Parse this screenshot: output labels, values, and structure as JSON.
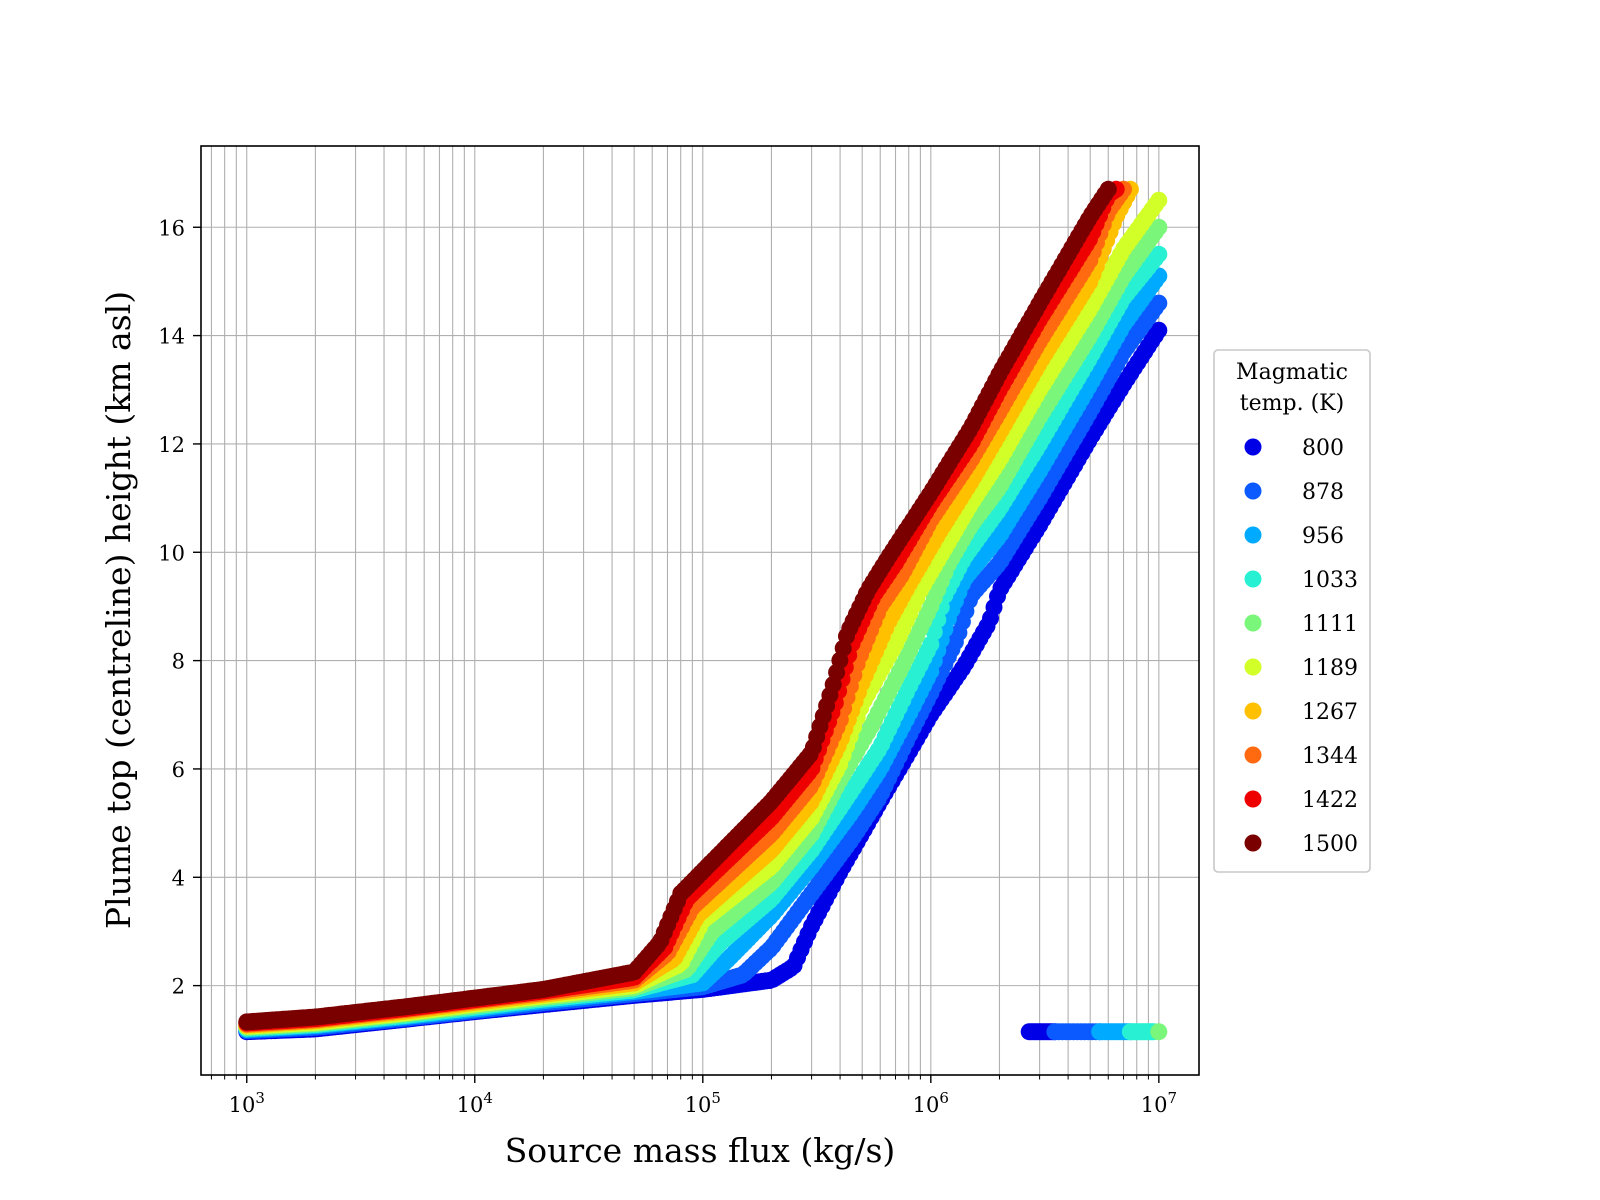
{
  "chart_data": {
    "type": "scatter",
    "xscale": "log",
    "xlim": [
      630,
      15000000
    ],
    "ylim": [
      0.35,
      17.5
    ],
    "xlabel": "Source mass flux (kg/s)",
    "ylabel": "Plume top (centreline) height (km asl)",
    "grid": true,
    "x_ticks": [
      {
        "value": 1000,
        "base": "10",
        "exp": "3"
      },
      {
        "value": 10000,
        "base": "10",
        "exp": "4"
      },
      {
        "value": 100000,
        "base": "10",
        "exp": "5"
      },
      {
        "value": 1000000,
        "base": "10",
        "exp": "6"
      },
      {
        "value": 10000000,
        "base": "10",
        "exp": "7"
      }
    ],
    "y_ticks": [
      {
        "value": 2,
        "label": "2"
      },
      {
        "value": 4,
        "label": "4"
      },
      {
        "value": 6,
        "label": "6"
      },
      {
        "value": 8,
        "label": "8"
      },
      {
        "value": 10,
        "label": "10"
      },
      {
        "value": 12,
        "label": "12"
      },
      {
        "value": 14,
        "label": "14"
      },
      {
        "value": 16,
        "label": "16"
      }
    ],
    "legend": {
      "title_lines": [
        "Magmatic",
        "temp. (K)"
      ],
      "placement": "outside-right"
    },
    "series": [
      {
        "name": "800",
        "color": "#0000e6",
        "points": [
          [
            1000,
            1.15
          ],
          [
            2000,
            1.2
          ],
          [
            5000,
            1.38
          ],
          [
            10000,
            1.52
          ],
          [
            20000,
            1.65
          ],
          [
            50000,
            1.82
          ],
          [
            100000,
            1.93
          ],
          [
            200000,
            2.1
          ],
          [
            250000,
            2.35
          ],
          [
            300000,
            3.1
          ],
          [
            400000,
            4.1
          ],
          [
            600000,
            5.4
          ],
          [
            800000,
            6.3
          ],
          [
            1000000,
            7.0
          ],
          [
            1400000,
            7.9
          ],
          [
            1800000,
            8.7
          ],
          [
            2000000,
            9.3
          ],
          [
            3000000,
            10.5
          ],
          [
            5000000,
            12.1
          ],
          [
            7000000,
            13.1
          ],
          [
            10000000,
            14.1
          ]
        ]
      },
      {
        "name": "878",
        "color": "#0a5aff",
        "points": [
          [
            1000,
            1.17
          ],
          [
            2000,
            1.23
          ],
          [
            5000,
            1.4
          ],
          [
            10000,
            1.54
          ],
          [
            20000,
            1.68
          ],
          [
            50000,
            1.85
          ],
          [
            100000,
            1.98
          ],
          [
            150000,
            2.2
          ],
          [
            200000,
            2.7
          ],
          [
            300000,
            3.7
          ],
          [
            450000,
            4.7
          ],
          [
            600000,
            5.5
          ],
          [
            800000,
            6.6
          ],
          [
            1000000,
            7.4
          ],
          [
            1300000,
            8.4
          ],
          [
            1500000,
            9.2
          ],
          [
            2000000,
            9.8
          ],
          [
            3000000,
            11.0
          ],
          [
            5000000,
            12.6
          ],
          [
            7000000,
            13.7
          ],
          [
            10000000,
            14.6
          ]
        ]
      },
      {
        "name": "956",
        "color": "#00aaff",
        "points": [
          [
            1000,
            1.19
          ],
          [
            2000,
            1.26
          ],
          [
            5000,
            1.43
          ],
          [
            10000,
            1.57
          ],
          [
            20000,
            1.72
          ],
          [
            50000,
            1.89
          ],
          [
            100000,
            2.05
          ],
          [
            130000,
            2.5
          ],
          [
            200000,
            3.3
          ],
          [
            300000,
            4.2
          ],
          [
            450000,
            5.2
          ],
          [
            600000,
            6.0
          ],
          [
            800000,
            7.0
          ],
          [
            1000000,
            7.8
          ],
          [
            1200000,
            8.8
          ],
          [
            1400000,
            9.5
          ],
          [
            2000000,
            10.3
          ],
          [
            3000000,
            11.5
          ],
          [
            5000000,
            13.1
          ],
          [
            7000000,
            14.2
          ],
          [
            10000000,
            15.1
          ]
        ]
      },
      {
        "name": "1033",
        "color": "#28f0d2",
        "points": [
          [
            1000,
            1.21
          ],
          [
            2000,
            1.28
          ],
          [
            5000,
            1.45
          ],
          [
            10000,
            1.6
          ],
          [
            20000,
            1.75
          ],
          [
            50000,
            1.92
          ],
          [
            90000,
            2.2
          ],
          [
            120000,
            2.8
          ],
          [
            200000,
            3.6
          ],
          [
            300000,
            4.5
          ],
          [
            450000,
            5.6
          ],
          [
            600000,
            6.4
          ],
          [
            800000,
            7.5
          ],
          [
            1000000,
            8.3
          ],
          [
            1150000,
            9.2
          ],
          [
            1400000,
            9.9
          ],
          [
            2000000,
            10.8
          ],
          [
            3000000,
            12.0
          ],
          [
            5000000,
            13.6
          ],
          [
            7000000,
            14.7
          ],
          [
            10000000,
            15.5
          ]
        ]
      },
      {
        "name": "1111",
        "color": "#7af77a",
        "points": [
          [
            1000,
            1.23
          ],
          [
            2000,
            1.3
          ],
          [
            5000,
            1.48
          ],
          [
            10000,
            1.63
          ],
          [
            20000,
            1.78
          ],
          [
            50000,
            1.96
          ],
          [
            85000,
            2.3
          ],
          [
            110000,
            3.0
          ],
          [
            200000,
            3.9
          ],
          [
            300000,
            4.8
          ],
          [
            400000,
            5.8
          ],
          [
            550000,
            6.8
          ],
          [
            750000,
            7.9
          ],
          [
            1000000,
            9.0
          ],
          [
            1200000,
            9.8
          ],
          [
            1500000,
            10.5
          ],
          [
            2000000,
            11.2
          ],
          [
            3000000,
            12.5
          ],
          [
            5000000,
            14.0
          ],
          [
            7000000,
            15.1
          ],
          [
            10000000,
            16.0
          ]
        ]
      },
      {
        "name": "1189",
        "color": "#d2ff28",
        "points": [
          [
            1000,
            1.25
          ],
          [
            2000,
            1.32
          ],
          [
            5000,
            1.5
          ],
          [
            10000,
            1.66
          ],
          [
            20000,
            1.81
          ],
          [
            50000,
            2.0
          ],
          [
            80000,
            2.4
          ],
          [
            100000,
            3.2
          ],
          [
            200000,
            4.2
          ],
          [
            300000,
            5.1
          ],
          [
            400000,
            6.1
          ],
          [
            500000,
            7.2
          ],
          [
            700000,
            8.3
          ],
          [
            900000,
            9.3
          ],
          [
            1200000,
            10.2
          ],
          [
            1500000,
            10.9
          ],
          [
            2000000,
            11.7
          ],
          [
            3000000,
            13.0
          ],
          [
            5000000,
            14.5
          ],
          [
            7000000,
            15.6
          ],
          [
            10000000,
            16.5
          ]
        ]
      },
      {
        "name": "1267",
        "color": "#ffc000",
        "points": [
          [
            1000,
            1.27
          ],
          [
            2000,
            1.35
          ],
          [
            5000,
            1.53
          ],
          [
            10000,
            1.69
          ],
          [
            20000,
            1.84
          ],
          [
            50000,
            2.05
          ],
          [
            75000,
            2.5
          ],
          [
            95000,
            3.3
          ],
          [
            200000,
            4.5
          ],
          [
            300000,
            5.4
          ],
          [
            400000,
            6.5
          ],
          [
            500000,
            7.6
          ],
          [
            650000,
            8.7
          ],
          [
            800000,
            9.4
          ],
          [
            1100000,
            10.4
          ],
          [
            1500000,
            11.3
          ],
          [
            2000000,
            12.2
          ],
          [
            3000000,
            13.5
          ],
          [
            5000000,
            15.0
          ],
          [
            6500000,
            16.2
          ],
          [
            7500000,
            16.7
          ]
        ]
      },
      {
        "name": "1344",
        "color": "#ff6a10",
        "points": [
          [
            1000,
            1.29
          ],
          [
            2000,
            1.37
          ],
          [
            5000,
            1.56
          ],
          [
            10000,
            1.72
          ],
          [
            20000,
            1.87
          ],
          [
            50000,
            2.1
          ],
          [
            70000,
            2.6
          ],
          [
            90000,
            3.45
          ],
          [
            200000,
            4.8
          ],
          [
            300000,
            5.7
          ],
          [
            400000,
            6.9
          ],
          [
            480000,
            8.0
          ],
          [
            600000,
            9.0
          ],
          [
            750000,
            9.6
          ],
          [
            1000000,
            10.6
          ],
          [
            1500000,
            11.7
          ],
          [
            2000000,
            12.6
          ],
          [
            3000000,
            13.9
          ],
          [
            5000000,
            15.4
          ],
          [
            6000000,
            16.3
          ],
          [
            7000000,
            16.7
          ]
        ]
      },
      {
        "name": "1422",
        "color": "#ee0000",
        "points": [
          [
            1000,
            1.31
          ],
          [
            2000,
            1.39
          ],
          [
            5000,
            1.58
          ],
          [
            10000,
            1.74
          ],
          [
            20000,
            1.9
          ],
          [
            50000,
            2.15
          ],
          [
            68000,
            2.7
          ],
          [
            85000,
            3.6
          ],
          [
            200000,
            5.1
          ],
          [
            300000,
            6.0
          ],
          [
            380000,
            7.2
          ],
          [
            450000,
            8.3
          ],
          [
            560000,
            9.2
          ],
          [
            700000,
            9.8
          ],
          [
            1000000,
            10.9
          ],
          [
            1500000,
            12.0
          ],
          [
            2000000,
            13.0
          ],
          [
            3000000,
            14.3
          ],
          [
            5000000,
            15.8
          ],
          [
            6000000,
            16.6
          ],
          [
            6500000,
            16.7
          ]
        ]
      },
      {
        "name": "1500",
        "color": "#7a0000",
        "points": [
          [
            1000,
            1.33
          ],
          [
            2000,
            1.42
          ],
          [
            5000,
            1.61
          ],
          [
            10000,
            1.77
          ],
          [
            20000,
            1.93
          ],
          [
            50000,
            2.25
          ],
          [
            65000,
            2.8
          ],
          [
            80000,
            3.7
          ],
          [
            200000,
            5.4
          ],
          [
            300000,
            6.3
          ],
          [
            370000,
            7.5
          ],
          [
            430000,
            8.5
          ],
          [
            530000,
            9.3
          ],
          [
            650000,
            9.9
          ],
          [
            1000000,
            11.1
          ],
          [
            1500000,
            12.3
          ],
          [
            2000000,
            13.3
          ],
          [
            3000000,
            14.6
          ],
          [
            4000000,
            15.5
          ],
          [
            5000000,
            16.2
          ],
          [
            6000000,
            16.7
          ]
        ]
      }
    ],
    "extra_points": [
      {
        "series": "800",
        "x": [
          2700000,
          3500000
        ],
        "y": 1.15
      },
      {
        "series": "878",
        "x": [
          3500000,
          5500000
        ],
        "y": 1.15
      },
      {
        "series": "956",
        "x": [
          5500000,
          7500000
        ],
        "y": 1.15
      },
      {
        "series": "1033",
        "x": [
          7500000,
          9500000
        ],
        "y": 1.15
      },
      {
        "series": "1111",
        "x": [
          10000000,
          10000000
        ],
        "y": 1.15
      }
    ]
  }
}
